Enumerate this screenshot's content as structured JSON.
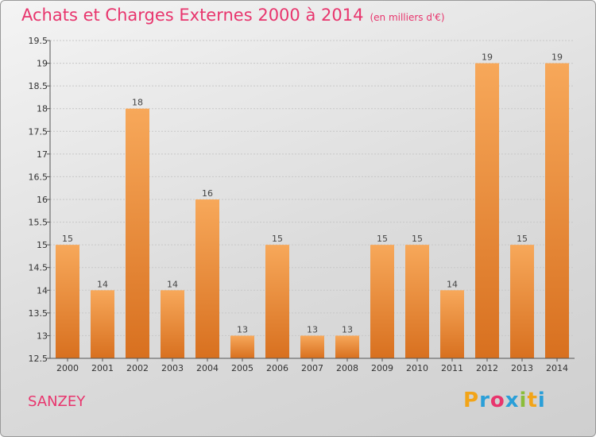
{
  "header": {
    "title": "Achats et Charges Externes 2000 à 2014",
    "unit": "(en milliers d'€)"
  },
  "commune": "SANZEY",
  "logo": {
    "text": "Proxiti",
    "letters": [
      "P",
      "r",
      "o",
      "x",
      "i",
      "t",
      "i"
    ],
    "colors": [
      "#f2a418",
      "#2a9fd8",
      "#e8356d",
      "#2a9fd8",
      "#8bbd3a",
      "#f2a418",
      "#2a9fd8"
    ]
  },
  "colors": {
    "accent": "#e8356d",
    "bar_top": "#f7a85a",
    "bar_bottom": "#d8701f"
  },
  "chart_data": {
    "type": "bar",
    "title": "Achats et Charges Externes 2000 à 2014",
    "xlabel": "",
    "ylabel": "",
    "categories": [
      "2000",
      "2001",
      "2002",
      "2003",
      "2004",
      "2005",
      "2006",
      "2007",
      "2008",
      "2009",
      "2010",
      "2011",
      "2012",
      "2013",
      "2014"
    ],
    "values": [
      15,
      14,
      18,
      14,
      16,
      13,
      15,
      13,
      13,
      15,
      15,
      14,
      19,
      15,
      19
    ],
    "data_labels": [
      "15",
      "14",
      "18",
      "14",
      "16",
      "13",
      "15",
      "13",
      "13",
      "15",
      "15",
      "14",
      "19",
      "15",
      "19"
    ],
    "ylim": [
      12.5,
      19.5
    ],
    "yticks": [
      "12.5",
      "13",
      "13.5",
      "14",
      "14.5",
      "15",
      "15.5",
      "16",
      "16.5",
      "17",
      "17.5",
      "18",
      "18.5",
      "19",
      "19.5"
    ],
    "grid": true
  }
}
